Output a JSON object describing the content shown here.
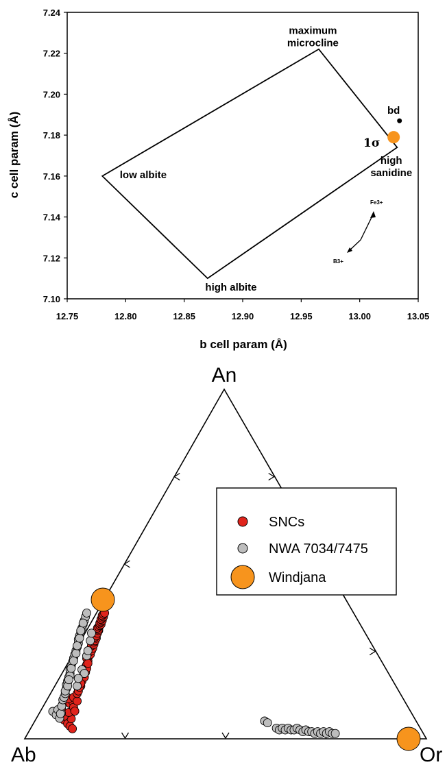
{
  "chart_data": [
    {
      "type": "line",
      "xlabel": "b cell param (Å)",
      "ylabel": "c cell param (Å)",
      "xlim": [
        12.75,
        13.05
      ],
      "ylim": [
        7.1,
        7.24
      ],
      "x_ticks": [
        "12.75",
        "12.80",
        "12.85",
        "12.90",
        "12.95",
        "13.00",
        "13.05"
      ],
      "y_ticks": [
        "7.10",
        "7.12",
        "7.14",
        "7.16",
        "7.18",
        "7.20",
        "7.22",
        "7.24"
      ],
      "polygon": [
        {
          "x": 12.78,
          "y": 7.16
        },
        {
          "x": 12.965,
          "y": 7.222
        },
        {
          "x": 13.032,
          "y": 7.174
        },
        {
          "x": 12.87,
          "y": 7.11
        }
      ],
      "corner_labels": [
        {
          "text": "maximum",
          "x": 12.96,
          "y": 7.2295
        },
        {
          "text": "microcline",
          "x": 12.96,
          "y": 7.2235
        },
        {
          "text": "low albite",
          "x": 12.815,
          "y": 7.159
        },
        {
          "text": "high albite",
          "x": 12.89,
          "y": 7.104
        },
        {
          "text": "high",
          "x": 13.027,
          "y": 7.166
        },
        {
          "text": "sanidine",
          "x": 13.027,
          "y": 7.16
        }
      ],
      "points": [
        {
          "name": "bd",
          "x": 13.034,
          "y": 7.187,
          "color": "#000000"
        },
        {
          "name": "Windjana",
          "x": 13.029,
          "y": 7.179,
          "color": "#f7941d"
        }
      ],
      "point_labels": {
        "bd": "bd",
        "sigma": "1σ"
      },
      "arrows": {
        "fe_label": "Fe3+",
        "b_label": "B3+"
      }
    },
    {
      "type": "scatter",
      "ternary": true,
      "vertex_labels": {
        "top": "An",
        "left": "Ab",
        "right": "Or"
      },
      "legend": [
        {
          "label": "SNCs",
          "color": "#e0241c"
        },
        {
          "label": "NWA 7034/7475",
          "color": "#bdbdbd"
        },
        {
          "label": "Windjana",
          "color": "#f7941d"
        }
      ],
      "series": [
        {
          "name": "SNCs",
          "color": "#e0241c",
          "points": [
            [
              0.33,
              0.15
            ],
            [
              0.36,
              0.12
            ],
            [
              0.38,
              0.1
            ],
            [
              0.39,
              0.16
            ],
            [
              0.4,
              0.08
            ],
            [
              0.31,
              0.23
            ],
            [
              0.33,
              0.18
            ],
            [
              0.37,
              0.21
            ],
            [
              0.32,
              0.28
            ],
            [
              0.38,
              0.28
            ],
            [
              0.4,
              0.3
            ],
            [
              0.37,
              0.32
            ],
            [
              0.41,
              0.25
            ],
            [
              0.42,
              0.22
            ],
            [
              0.41,
              0.33
            ],
            [
              0.44,
              0.3
            ],
            [
              0.44,
              0.36
            ],
            [
              0.45,
              0.4
            ],
            [
              0.47,
              0.42
            ],
            [
              0.46,
              0.45
            ],
            [
              0.48,
              0.47
            ],
            [
              0.49,
              0.5
            ],
            [
              0.5,
              0.52
            ],
            [
              0.49,
              0.55
            ],
            [
              0.51,
              0.57
            ],
            [
              0.52,
              0.59
            ],
            [
              0.53,
              0.62
            ],
            [
              0.52,
              0.64
            ],
            [
              0.54,
              0.66
            ],
            [
              0.55,
              0.67
            ],
            [
              0.54,
              0.69
            ],
            [
              0.56,
              0.7
            ],
            [
              0.57,
              0.72
            ],
            [
              0.56,
              0.74
            ],
            [
              0.58,
              0.75
            ],
            [
              0.58,
              0.77
            ],
            [
              0.59,
              0.78
            ],
            [
              0.6,
              0.8
            ],
            [
              0.59,
              0.81
            ],
            [
              0.6,
              0.82
            ],
            [
              0.61,
              0.84
            ],
            [
              0.62,
              0.86
            ],
            [
              0.62,
              0.87
            ],
            [
              0.61,
              0.88
            ],
            [
              0.62,
              0.89
            ],
            [
              0.63,
              0.9
            ],
            [
              0.64,
              0.91
            ],
            [
              0.63,
              0.92
            ],
            [
              0.64,
              0.93
            ],
            [
              0.65,
              0.94
            ],
            [
              0.64,
              0.95
            ],
            [
              0.65,
              0.96
            ],
            [
              0.66,
              0.97
            ],
            [
              0.65,
              0.98
            ],
            [
              0.66,
              0.99
            ],
            [
              0.67,
              1.0
            ],
            [
              0.48,
              0.46
            ],
            [
              0.5,
              0.49
            ],
            [
              0.51,
              0.53
            ],
            [
              0.52,
              0.56
            ],
            [
              0.53,
              0.6
            ],
            [
              0.45,
              0.38
            ],
            [
              0.46,
              0.41
            ],
            [
              0.47,
              0.44
            ]
          ]
        },
        {
          "name": "NWA 7034/7475",
          "color": "#bdbdbd",
          "points": [
            [
              0.06,
              0.08
            ],
            [
              0.08,
              0.06
            ],
            [
              0.09,
              0.09
            ],
            [
              0.1,
              0.04
            ],
            [
              0.11,
              0.07
            ],
            [
              0.3,
              0.2
            ],
            [
              0.31,
              0.26
            ],
            [
              0.32,
              0.31
            ],
            [
              0.33,
              0.33
            ],
            [
              0.34,
              0.36
            ],
            [
              0.35,
              0.4
            ],
            [
              0.35,
              0.43
            ],
            [
              0.36,
              0.46
            ],
            [
              0.37,
              0.49
            ],
            [
              0.38,
              0.52
            ],
            [
              0.38,
              0.55
            ],
            [
              0.39,
              0.58
            ],
            [
              0.4,
              0.61
            ],
            [
              0.41,
              0.64
            ],
            [
              0.42,
              0.67
            ],
            [
              0.43,
              0.7
            ],
            [
              0.44,
              0.73
            ],
            [
              0.45,
              0.76
            ],
            [
              0.45,
              0.79
            ],
            [
              0.46,
              0.82
            ],
            [
              0.47,
              0.85
            ],
            [
              0.48,
              0.88
            ],
            [
              0.49,
              0.91
            ],
            [
              0.5,
              0.94
            ],
            [
              0.51,
              0.97
            ],
            [
              0.52,
              1.0
            ],
            [
              0.36,
              0.45
            ],
            [
              0.38,
              0.5
            ],
            [
              0.39,
              0.56
            ],
            [
              0.41,
              0.62
            ],
            [
              0.43,
              0.68
            ],
            [
              0.44,
              0.74
            ],
            [
              0.46,
              0.8
            ],
            [
              0.47,
              0.86
            ],
            [
              0.49,
              0.92
            ],
            [
              0.34,
              0.38
            ],
            [
              0.36,
              0.42
            ],
            [
              0.37,
              0.47
            ],
            [
              0.48,
              0.55
            ],
            [
              0.5,
              0.52
            ],
            [
              0.44,
              0.42
            ],
            [
              0.45,
              0.48
            ],
            [
              0.52,
              0.66
            ],
            [
              0.53,
              0.7
            ],
            [
              0.55,
              0.78
            ],
            [
              0.56,
              0.84
            ],
            [
              0.79,
              0.1
            ],
            [
              0.8,
              0.09
            ],
            [
              0.83,
              0.06
            ],
            [
              0.84,
              0.05
            ],
            [
              0.85,
              0.06
            ],
            [
              0.86,
              0.05
            ],
            [
              0.87,
              0.06
            ],
            [
              0.88,
              0.05
            ],
            [
              0.89,
              0.05
            ],
            [
              0.9,
              0.06
            ],
            [
              0.91,
              0.05
            ],
            [
              0.92,
              0.04
            ],
            [
              0.93,
              0.05
            ],
            [
              0.94,
              0.04
            ],
            [
              0.95,
              0.04
            ],
            [
              0.96,
              0.03
            ],
            [
              0.97,
              0.04
            ],
            [
              0.98,
              0.03
            ],
            [
              0.99,
              0.04
            ],
            [
              1.0,
              0.03
            ],
            [
              1.01,
              0.04
            ],
            [
              1.02,
              0.03
            ],
            [
              1.03,
              0.03
            ]
          ]
        },
        {
          "name": "Windjana",
          "color": "#f7941d",
          "points": [
            [
              0.26,
              0.58
            ],
            [
              1.0,
              0.0
            ]
          ]
        }
      ]
    }
  ]
}
